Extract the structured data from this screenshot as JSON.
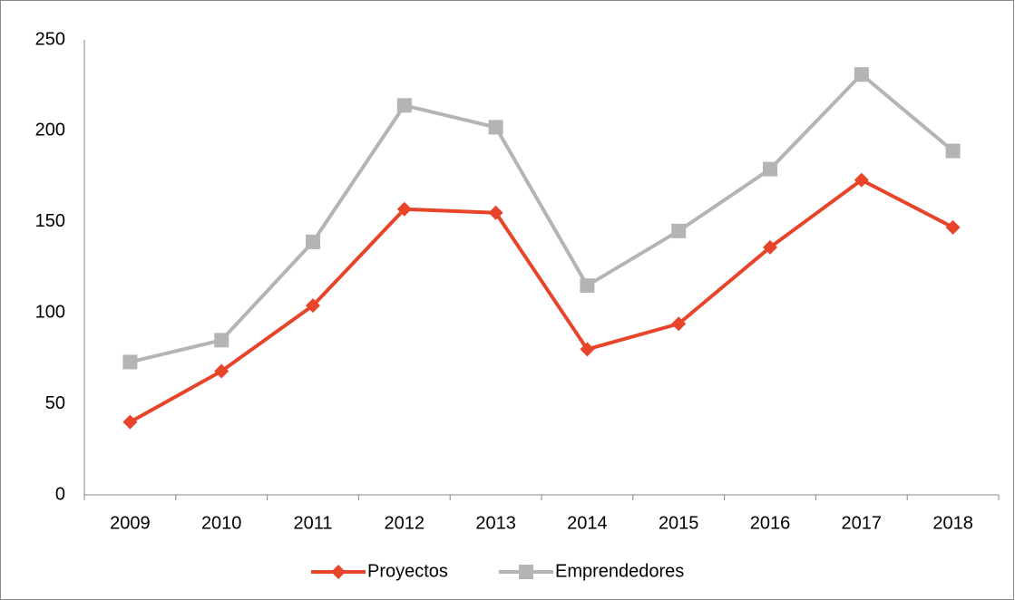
{
  "chart_data": {
    "type": "line",
    "categories": [
      "2009",
      "2010",
      "2011",
      "2012",
      "2013",
      "2014",
      "2015",
      "2016",
      "2017",
      "2018"
    ],
    "series": [
      {
        "name": "Proyectos",
        "color": "#e8442a",
        "marker": "diamond",
        "values": [
          40,
          68,
          104,
          157,
          155,
          80,
          94,
          136,
          173,
          147
        ]
      },
      {
        "name": "Emprendedores",
        "color": "#b4b4b4",
        "marker": "square",
        "values": [
          73,
          85,
          139,
          214,
          202,
          115,
          145,
          179,
          231,
          189
        ]
      }
    ],
    "ylim": [
      0,
      250
    ],
    "yticks": [
      0,
      50,
      100,
      150,
      200,
      250
    ],
    "grid": false,
    "legend": "bottom"
  }
}
